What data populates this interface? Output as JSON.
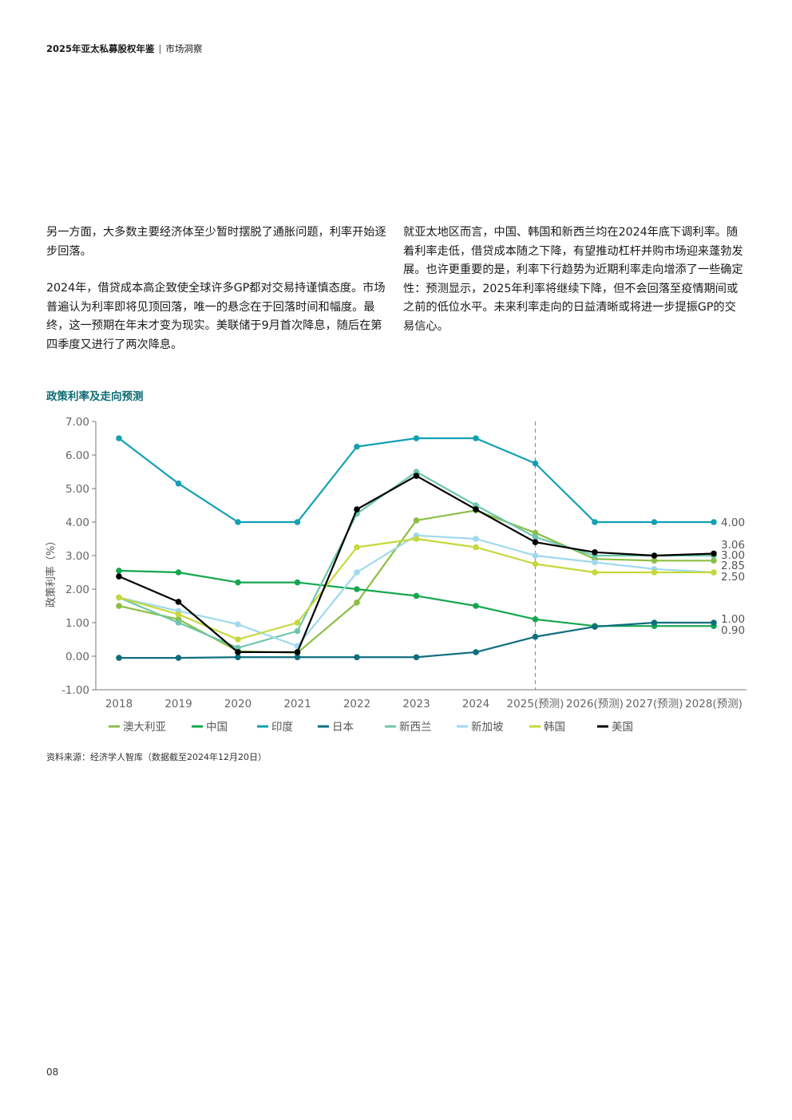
{
  "header": {
    "publication": "2025年亚太私募股权年鉴",
    "section": "市场洞察"
  },
  "body": {
    "left": [
      "另一方面，大多数主要经济体至少暂时摆脱了通胀问题，利率开始逐步回落。",
      "2024年，借贷成本高企致使全球许多GP都对交易持谨慎态度。市场普遍认为利率即将见顶回落，唯一的悬念在于回落时间和幅度。最终，这一预期在年末才变为现实。美联储于9月首次降息，随后在第四季度又进行了两次降息。"
    ],
    "right": [
      "就亚太地区而言，中国、韩国和新西兰均在2024年底下调利率。随着利率走低，借贷成本随之下降，有望推动杠杆并购市场迎来蓬勃发展。也许更重要的是，利率下行趋势为近期利率走向增添了一些确定性：预测显示，2025年利率将继续下降，但不会回落至疫情期间或之前的低位水平。未来利率走向的日益清晰或将进一步提振GP的交易信心。"
    ]
  },
  "chart_title": "政策利率及走向预测",
  "chart_data": {
    "type": "line",
    "ylabel": "政策利率（%）",
    "xlabel": "",
    "ylim": [
      -1,
      7
    ],
    "yticks": [
      "-1.00",
      "0.00",
      "1.00",
      "2.00",
      "3.00",
      "4.00",
      "5.00",
      "6.00",
      "7.00"
    ],
    "ytick_values": [
      -1,
      0,
      1,
      2,
      3,
      4,
      5,
      6,
      7
    ],
    "categories": [
      "2018",
      "2019",
      "2020",
      "2021",
      "2022",
      "2023",
      "2024",
      "2025(预测)",
      "2026(预测)",
      "2027(预测)",
      "2028(预测)"
    ],
    "forecast_divider_category": "2025(预测)",
    "grid": false,
    "legend_position": "bottom",
    "series": [
      {
        "name": "澳大利亚",
        "color": "#8bbf44",
        "values": [
          1.5,
          1.1,
          0.15,
          0.1,
          1.6,
          4.05,
          4.35,
          3.68,
          2.9,
          2.85,
          2.85
        ]
      },
      {
        "name": "中国",
        "color": "#14a74f",
        "values": [
          2.55,
          2.5,
          2.2,
          2.2,
          2.0,
          1.8,
          1.5,
          1.1,
          0.9,
          0.9,
          0.9
        ]
      },
      {
        "name": "印度",
        "color": "#13a0b4",
        "values": [
          6.5,
          5.15,
          4.0,
          4.0,
          6.25,
          6.5,
          6.5,
          5.75,
          4.0,
          4.0,
          4.0
        ]
      },
      {
        "name": "日本",
        "color": "#0f6e7e",
        "values": [
          -0.05,
          -0.05,
          -0.03,
          -0.03,
          -0.03,
          -0.03,
          0.12,
          0.58,
          0.88,
          1.0,
          1.0
        ]
      },
      {
        "name": "新西兰",
        "color": "#6dc6ac",
        "values": [
          1.75,
          1.0,
          0.25,
          0.75,
          4.25,
          5.5,
          4.5,
          3.55,
          3.0,
          3.0,
          3.0
        ]
      },
      {
        "name": "新加坡",
        "color": "#9fd9ee",
        "values": [
          1.75,
          1.35,
          0.95,
          0.3,
          2.5,
          3.6,
          3.5,
          3.0,
          2.8,
          2.6,
          2.5
        ]
      },
      {
        "name": "韩国",
        "color": "#c6d83b",
        "values": [
          1.75,
          1.25,
          0.5,
          1.0,
          3.25,
          3.5,
          3.25,
          2.75,
          2.5,
          2.5,
          2.5
        ]
      },
      {
        "name": "美国",
        "color": "#000000",
        "values": [
          2.38,
          1.62,
          0.12,
          0.12,
          4.38,
          5.38,
          4.38,
          3.4,
          3.1,
          3.0,
          3.06
        ]
      }
    ],
    "end_labels": [
      "4.00",
      "3.06",
      "3.00",
      "2.85",
      "2.50",
      "1.00",
      "0.90"
    ]
  },
  "source": "资料来源：经济学人智库（数据截至2024年12月20日）",
  "page_number": "08"
}
